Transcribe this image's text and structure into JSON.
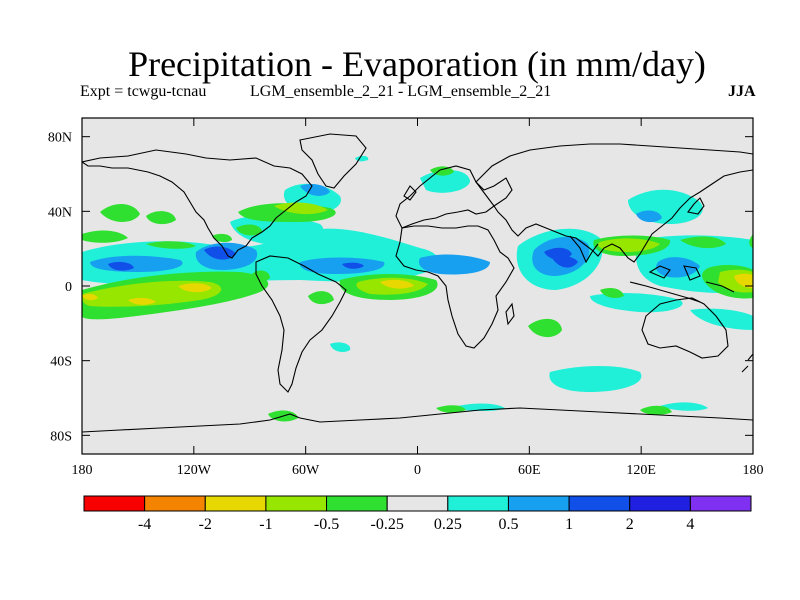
{
  "title": "Precipitation - Evaporation (in mm/day)",
  "experiment": "Expt = tcwgu-tcnau",
  "run_comparison": "LGM_ensemble_2_21 - LGM_ensemble_2_21",
  "season": "JJA",
  "lat_axis": {
    "labels": [
      "80N",
      "40N",
      "0",
      "40S",
      "80S"
    ],
    "values": [
      80,
      40,
      0,
      -40,
      -80
    ],
    "range": [
      -90,
      90
    ]
  },
  "lon_axis": {
    "labels": [
      "180",
      "120W",
      "60W",
      "0",
      "60E",
      "120E",
      "180"
    ],
    "values": [
      -180,
      -120,
      -60,
      0,
      60,
      120,
      180
    ],
    "range": [
      -180,
      180
    ]
  },
  "colorbar": {
    "colors": [
      "#f80000",
      "#f48400",
      "#e6d800",
      "#96e600",
      "#30e030",
      "#e6e6e6",
      "#20f0d8",
      "#18a0f0",
      "#1050e8",
      "#2020e0",
      "#8030f0"
    ],
    "labels": [
      "-4",
      "-2",
      "-1",
      "-0.5",
      "-0.25",
      "0.25",
      "0.5",
      "1",
      "2",
      "4"
    ]
  },
  "colors": {
    "background": "#e6e6e6",
    "coast": "#000000"
  }
}
